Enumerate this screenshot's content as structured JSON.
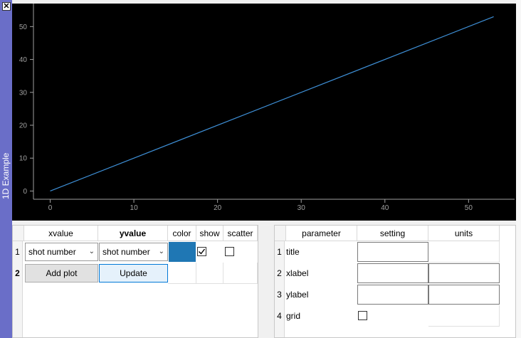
{
  "dock": {
    "title": "1D Example",
    "close_symbol": "✕"
  },
  "chart_data": {
    "type": "line",
    "series": [
      {
        "x": [
          0,
          53
        ],
        "y": [
          0,
          53
        ],
        "color": "#3e8fd6"
      }
    ],
    "xlim": [
      -2,
      55.5
    ],
    "ylim": [
      -2.5,
      57
    ],
    "xticks": [
      0,
      10,
      20,
      30,
      40,
      50
    ],
    "yticks": [
      0,
      10,
      20,
      30,
      40,
      50
    ],
    "background": "#000000",
    "axis_color": "#a0a0a0",
    "grid": false
  },
  "plot_table": {
    "columns": [
      "xvalue",
      "yvalue",
      "color",
      "show",
      "scatter"
    ],
    "rows": [
      {
        "num": "1",
        "xvalue": "shot number",
        "yvalue": "shot number",
        "color": "#1f77b4",
        "show": true,
        "scatter": false
      },
      {
        "num": "2",
        "add_label": "Add plot",
        "update_label": "Update"
      }
    ]
  },
  "param_table": {
    "columns": [
      "parameter",
      "setting",
      "units"
    ],
    "rows": [
      {
        "num": "1",
        "name": "title"
      },
      {
        "num": "2",
        "name": "xlabel"
      },
      {
        "num": "3",
        "name": "ylabel"
      },
      {
        "num": "4",
        "name": "grid",
        "checked": false
      }
    ]
  }
}
